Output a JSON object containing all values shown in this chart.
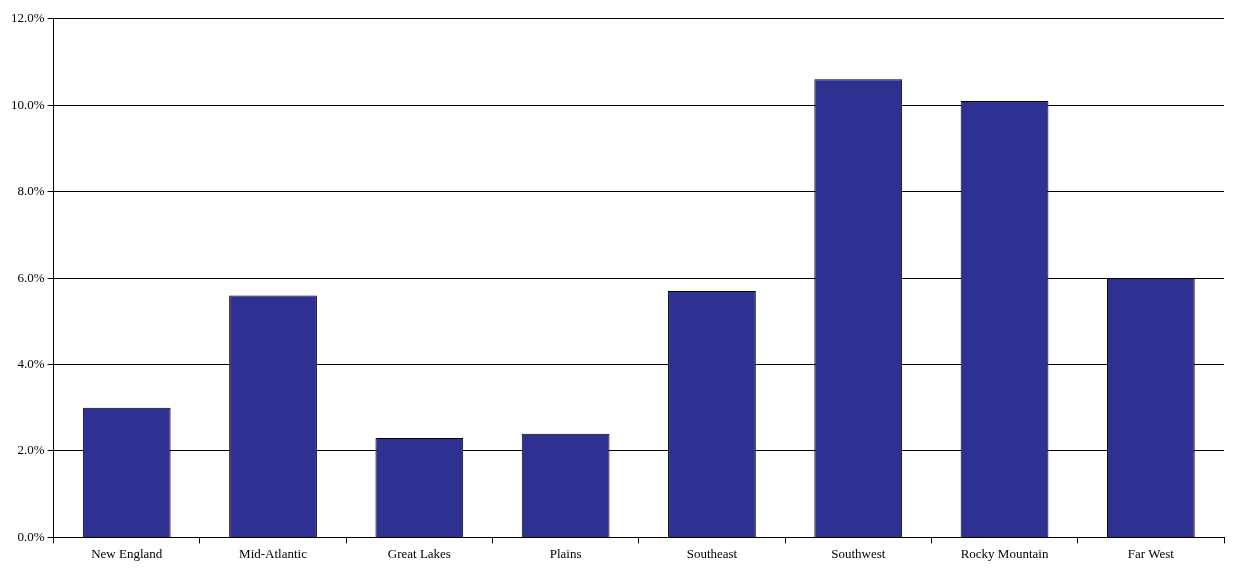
{
  "chart_data": {
    "type": "bar",
    "categories": [
      "New England",
      "Mid-Atlantic",
      "Great Lakes",
      "Plains",
      "Southeast",
      "Southwest",
      "Rocky Mountain",
      "Far West"
    ],
    "values": [
      3.0,
      5.6,
      2.3,
      2.4,
      5.7,
      10.6,
      10.1,
      6.0
    ],
    "color": "#2e3192",
    "ylim": [
      0,
      12
    ],
    "yticks": [
      {
        "value": 0,
        "label": "0.0%"
      },
      {
        "value": 2,
        "label": "2.0%"
      },
      {
        "value": 4,
        "label": "4.0%"
      },
      {
        "value": 6,
        "label": "6.0%"
      },
      {
        "value": 8,
        "label": "8.0%"
      },
      {
        "value": 10,
        "label": "10.0%"
      },
      {
        "value": 12,
        "label": "12.0%"
      }
    ],
    "grid": "y",
    "legend": false
  }
}
